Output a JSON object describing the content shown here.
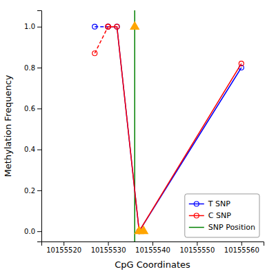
{
  "chart_data": {
    "type": "line",
    "xlabel": "CpG Coordinates",
    "ylabel": "Methylation Frequency",
    "xlim": [
      10155515,
      10155565
    ],
    "ylim": [
      -0.05,
      1.08
    ],
    "xticks": [
      10155520,
      10155530,
      10155540,
      10155550,
      10155560
    ],
    "yticks": [
      {
        "value": 0.0,
        "label": "0.0"
      },
      0.2,
      0.4,
      0.6,
      0.8,
      {
        "value": 1.0,
        "label": "1.0"
      }
    ],
    "grid": false,
    "legend": "lower right",
    "series": [
      {
        "type": "line",
        "color": "blue",
        "line_style": "dashed",
        "marker": "circle",
        "x": [
          10155527,
          10155530
        ],
        "values": [
          1.0,
          1.0
        ]
      },
      {
        "name": "T SNP",
        "type": "line",
        "color": "blue",
        "line_style": "solid",
        "marker": "circle",
        "x": [
          10155530,
          10155532,
          10155537,
          10155560
        ],
        "values": [
          1.0,
          1.0,
          0.0,
          0.8
        ]
      },
      {
        "type": "line",
        "color": "red",
        "line_style": "dashed",
        "marker": "circle",
        "x": [
          10155527,
          10155530
        ],
        "values": [
          0.87,
          1.0
        ]
      },
      {
        "name": "C SNP",
        "type": "line",
        "color": "red",
        "line_style": "solid",
        "marker": "circle",
        "x": [
          10155530,
          10155532,
          10155537,
          10155560
        ],
        "values": [
          1.0,
          1.0,
          0.0,
          0.82
        ]
      },
      {
        "type": "scatter",
        "color": "orange",
        "marker": "triangle",
        "x": [
          10155536,
          10155537,
          10155538
        ],
        "values": [
          1.0,
          0.0,
          0.0
        ]
      },
      {
        "name": "SNP Position",
        "type": "vline",
        "color": "green",
        "line_style": "solid",
        "x": 10155536
      }
    ]
  }
}
